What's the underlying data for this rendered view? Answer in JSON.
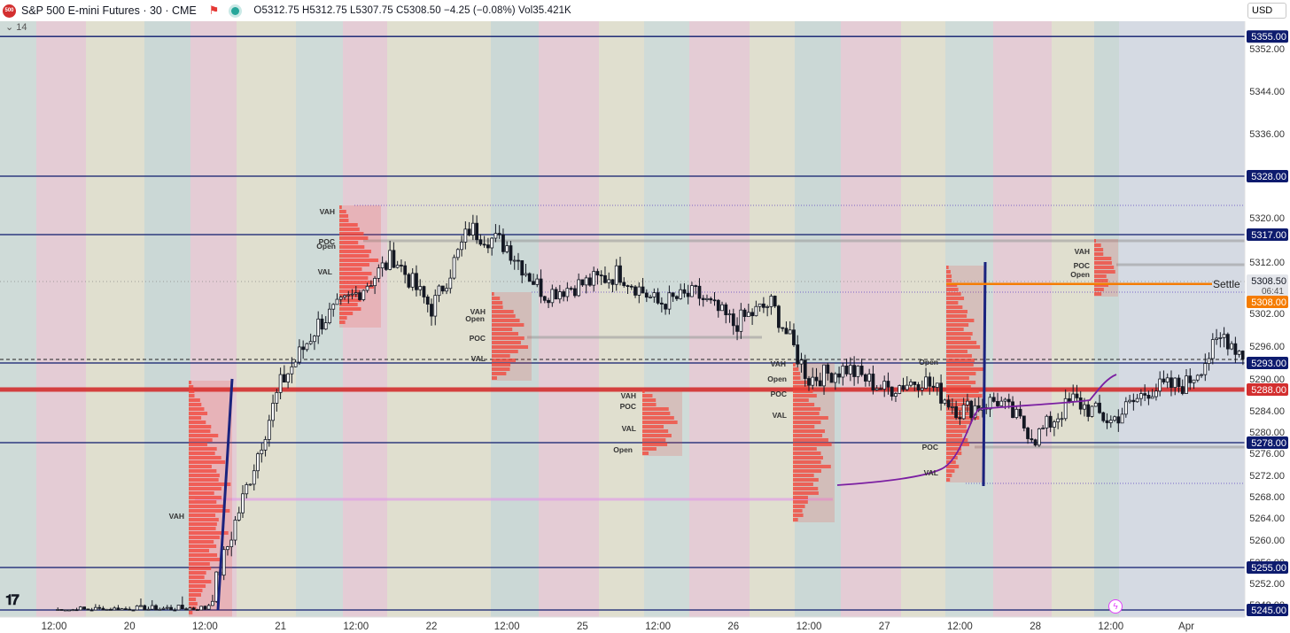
{
  "header": {
    "symbol_badge": "500",
    "title": "S&P 500 E-mini Futures · 30 · CME",
    "ohlc": "O5312.75 H5312.75 L5307.75 C5308.50 −4.25 (−0.08%) Vol35.421K",
    "sub_indicator": "14",
    "currency": "USD",
    "flag_icon": "flag-icon",
    "live_icon": "live-dot-icon"
  },
  "colors": {
    "level_line": "#0d1b6e",
    "thick_level": "#d32f2f",
    "settle": "#f57c00",
    "vwap": "#7b1fa2",
    "profile": "#f44336",
    "candle": "#131722"
  },
  "chart_data": {
    "type": "line",
    "title": "",
    "xlabel": "",
    "ylabel": "",
    "ylim": [
      5245,
      5357
    ],
    "x_ticks": [
      "12:00",
      "20",
      "12:00",
      "21",
      "12:00",
      "22",
      "12:00",
      "25",
      "12:00",
      "26",
      "12:00",
      "27",
      "12:00",
      "28",
      "12:00",
      "Apr"
    ],
    "y_ticks": [
      5248,
      5252,
      5256,
      5260,
      5264,
      5268,
      5272,
      5276,
      5280,
      5284,
      5290,
      5296,
      5302,
      5312,
      5320,
      5336,
      5344,
      5352
    ],
    "price_levels": [
      {
        "label": "5355.00",
        "value": 5355
      },
      {
        "label": "5328.00",
        "value": 5328
      },
      {
        "label": "5317.00",
        "value": 5317
      },
      {
        "label": "5293.00",
        "value": 5293
      },
      {
        "label": "5278.00",
        "value": 5278
      },
      {
        "label": "5255.00",
        "value": 5255
      },
      {
        "label": "5245.00",
        "value": 5245
      }
    ],
    "thick_level": {
      "label": "5288.00",
      "value": 5288
    },
    "settle": {
      "label": "Settle",
      "value": 5308,
      "price_label": "5308.00"
    },
    "last_price": {
      "label": "5308.50",
      "countdown": "06:41",
      "value": 5308.5
    },
    "series": [
      {
        "x": [
          0.0,
          2.0,
          3.0,
          3.5,
          4.0,
          4.5,
          5.0,
          5.5,
          6.0,
          6.5,
          7.0,
          7.5,
          8.0,
          8.5,
          9.0,
          9.5,
          10.0,
          10.5,
          11.0,
          11.5,
          12.0,
          12.5,
          13.0,
          13.5,
          14.0,
          14.5,
          15.0,
          15.5,
          16.0,
          16.5,
          17.0,
          17.5,
          18.0,
          18.5,
          19.0,
          19.5,
          20.0,
          20.5,
          21.0,
          21.5,
          22.0,
          22.5,
          23.0
        ],
        "values": [
          5245,
          5246,
          5289,
          5300,
          5306,
          5313,
          5303,
          5318,
          5315,
          5306,
          5308,
          5310,
          5304,
          5306,
          5300,
          5304,
          5290,
          5292,
          5288,
          5290,
          5284,
          5286,
          5279,
          5286,
          5282,
          5288,
          5289,
          5298,
          5291,
          5287,
          5266,
          5274,
          5278,
          5283,
          5286,
          5272,
          5312,
          5304,
          5305,
          5303,
          5306,
          5313,
          5308.5
        ]
      }
    ],
    "value_areas": [
      {
        "session": "20",
        "vah": 5265,
        "poc": 5288,
        "val": 5246,
        "open": 5246
      },
      {
        "session": "21",
        "vah": 5322,
        "poc": 5316,
        "val": 5309,
        "open": 5315
      },
      {
        "session": "22",
        "vah": 5304,
        "poc": 5299,
        "val": 5293,
        "open": 5303
      },
      {
        "session": "25",
        "vah": 5287,
        "poc": 5285,
        "val": 5281,
        "open": 5277
      },
      {
        "session": "26",
        "vah": 5292,
        "poc": 5288,
        "val": 5283,
        "open": 5290
      },
      {
        "session": "27",
        "vah": 5287,
        "poc": 5277,
        "val": 5273,
        "open": 5293
      },
      {
        "session": "28",
        "vah": 5314,
        "poc": 5311,
        "val": 5306,
        "open": 5309
      }
    ],
    "annotations": [
      "VAH",
      "POC",
      "VAL",
      "Open"
    ]
  }
}
